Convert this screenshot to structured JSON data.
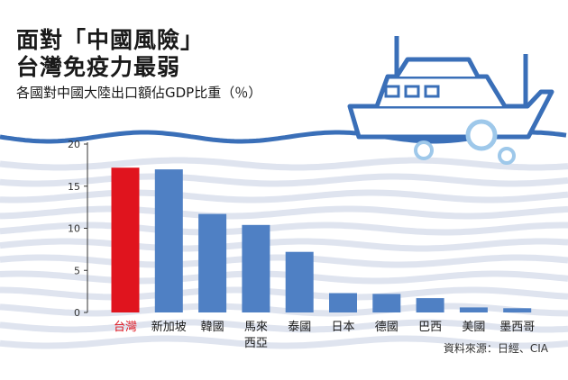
{
  "title_lines": [
    "面對「中國風險」",
    "台灣免疫力最弱"
  ],
  "subtitle": "各國對中國大陸出口額佔GDP比重（％）",
  "source": "資料來源：日經、CIA",
  "colors": {
    "highlight": "#e0141e",
    "bar": "#4f80c4",
    "wave": "#3a6fb8",
    "stripe": "#dfe4ef",
    "text": "#1a1a1a"
  },
  "chart_data": {
    "type": "bar",
    "categories": [
      "台灣",
      "新加坡",
      "韓國",
      "馬來西亞",
      "泰國",
      "日本",
      "德國",
      "巴西",
      "美國",
      "墨西哥"
    ],
    "category_lines": [
      [
        "台灣"
      ],
      [
        "新加坡"
      ],
      [
        "韓國"
      ],
      [
        "馬來",
        "西亞"
      ],
      [
        "泰國"
      ],
      [
        "日本"
      ],
      [
        "德國"
      ],
      [
        "巴西"
      ],
      [
        "美國"
      ],
      [
        "墨西哥"
      ]
    ],
    "values": [
      17.2,
      17.0,
      11.7,
      10.4,
      7.2,
      2.3,
      2.2,
      1.7,
      0.6,
      0.5
    ],
    "highlight_index": 0,
    "ylim": [
      0,
      20
    ],
    "yticks": [
      0,
      5,
      10,
      15,
      20
    ],
    "grid": false
  }
}
